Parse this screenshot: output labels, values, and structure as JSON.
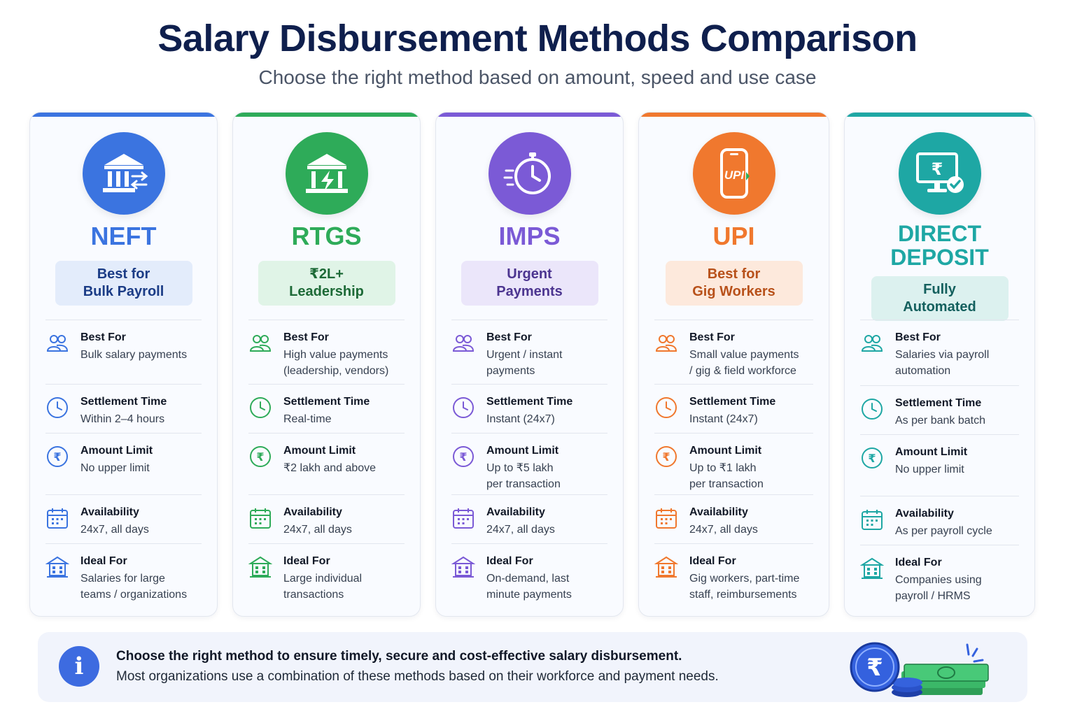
{
  "header": {
    "title": "Salary Disbursement Methods Comparison",
    "subtitle": "Choose the right method based on amount, speed and use case"
  },
  "labels": {
    "best_for": "Best For",
    "settlement_time": "Settlement Time",
    "amount_limit": "Amount Limit",
    "availability": "Availability",
    "ideal_for": "Ideal For"
  },
  "methods": [
    {
      "name": "NEFT",
      "badge_line1": "Best for",
      "badge_line2": "Bulk Payroll",
      "accent": "#3b74e0",
      "badge_bg": "#e3ecfb",
      "badge_color": "#1b3c86",
      "icon": "bank-transfer-icon",
      "best_for": "Bulk salary payments",
      "settlement_time": "Within 2–4 hours",
      "amount_limit": "No upper limit",
      "availability": "24x7, all days",
      "ideal_for": "Salaries for large\nteams / organizations"
    },
    {
      "name": "RTGS",
      "badge_line1": "₹2L+",
      "badge_line2": "Leadership",
      "accent": "#2eab59",
      "badge_bg": "#e0f4e7",
      "badge_color": "#1d6a37",
      "icon": "bank-lightning-icon",
      "best_for": "High value payments\n(leadership, vendors)",
      "settlement_time": "Real-time",
      "amount_limit": "₹2 lakh and above",
      "availability": "24x7, all days",
      "ideal_for": "Large individual\ntransactions"
    },
    {
      "name": "IMPS",
      "badge_line1": "Urgent",
      "badge_line2": "Payments",
      "accent": "#7b5ad6",
      "badge_bg": "#ebe6fa",
      "badge_color": "#4c3590",
      "icon": "stopwatch-icon",
      "best_for": "Urgent / instant\npayments",
      "settlement_time": "Instant (24x7)",
      "amount_limit": "Up to ₹5 lakh\nper transaction",
      "availability": "24x7, all days",
      "ideal_for": "On-demand, last\nminute payments"
    },
    {
      "name": "UPI",
      "badge_line1": "Best for",
      "badge_line2": "Gig Workers",
      "accent": "#f0782e",
      "badge_bg": "#fde9dc",
      "badge_color": "#b8511a",
      "icon": "upi-phone-icon",
      "best_for": "Small value payments\n/ gig & field workforce",
      "settlement_time": "Instant (24x7)",
      "amount_limit": "Up to ₹1 lakh\nper transaction",
      "availability": "24x7, all days",
      "ideal_for": "Gig workers, part-time\nstaff, reimbursements"
    },
    {
      "name": "DIRECT\nDEPOSIT",
      "badge_line1": "Fully",
      "badge_line2": "Automated",
      "accent": "#1ea7a4",
      "badge_bg": "#dcf1ef",
      "badge_color": "#14605e",
      "icon": "monitor-rupee-icon",
      "best_for": "Salaries via payroll\nautomation",
      "settlement_time": "As per bank batch",
      "amount_limit": "No upper limit",
      "availability": "As per payroll cycle",
      "ideal_for": "Companies using\npayroll / HRMS"
    }
  ],
  "footer": {
    "line1": "Choose the right method to ensure timely, secure and cost-effective salary disbursement.",
    "line2": "Most organizations use a combination of these methods based on their workforce and payment needs.",
    "info_symbol": "i",
    "rupee_symbol": "₹"
  }
}
